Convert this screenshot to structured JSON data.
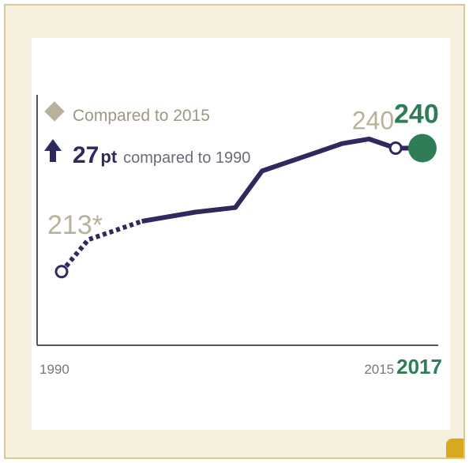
{
  "chart_data": {
    "type": "line",
    "x": [
      1990,
      1992,
      1996,
      2000,
      2003,
      2005,
      2007,
      2009,
      2011,
      2013,
      2015,
      2017
    ],
    "series": [
      {
        "values": [
          213,
          220,
          224,
          226,
          227,
          235,
          237,
          239,
          241,
          242,
          240,
          240
        ]
      }
    ],
    "estimated_segment": [
      1990,
      1996
    ],
    "xlim": [
      1990,
      2017
    ],
    "ylim": [
      195,
      252
    ],
    "x_tick_labels": [
      "1990",
      "2015",
      "2017"
    ],
    "labels": {
      "start_value": "213*",
      "prev_value": "240",
      "current_value": "240"
    },
    "legend": {
      "compared_2015": "Compared to 2015",
      "change_number": "27",
      "change_unit": "pt",
      "change_text": "compared to 1990"
    },
    "colors": {
      "line": "#2e2a5e",
      "highlight": "#2e7d57",
      "muted": "#b8b29b",
      "axis": "#555555",
      "frame": "#d8c992",
      "card_bg": "#f5f1de"
    }
  }
}
